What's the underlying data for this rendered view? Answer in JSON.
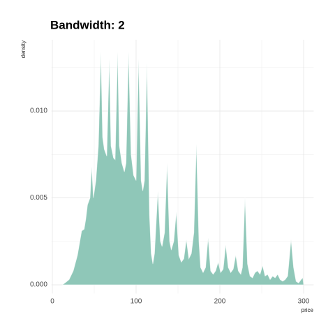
{
  "chart_data": {
    "type": "area",
    "title": "Bandwidth: 2",
    "x_label": "price",
    "y_label": "density",
    "x": [
      12,
      15,
      20,
      25,
      30,
      35,
      38,
      40,
      42,
      45,
      47,
      49,
      52,
      55,
      58,
      60,
      62,
      65,
      68,
      70,
      73,
      75,
      78,
      80,
      83,
      86,
      88,
      91,
      94,
      97,
      100,
      103,
      106,
      108,
      110,
      113,
      116,
      118,
      120,
      122,
      126,
      129,
      131,
      134,
      137,
      140,
      142,
      145,
      148,
      151,
      154,
      157,
      160,
      163,
      166,
      169,
      172,
      175,
      177,
      180,
      183,
      186,
      189,
      192,
      195,
      198,
      201,
      204,
      207,
      210,
      213,
      216,
      219,
      222,
      225,
      227,
      230,
      233,
      236,
      239,
      242,
      245,
      248,
      251,
      254,
      257,
      260,
      263,
      266,
      269,
      272,
      275,
      278,
      281,
      285,
      288,
      291,
      294,
      297,
      299,
      300
    ],
    "values": [
      0,
      0.0001,
      0.0003,
      0.0008,
      0.0017,
      0.0031,
      0.0032,
      0.0038,
      0.0046,
      0.005,
      0.0068,
      0.005,
      0.006,
      0.008,
      0.0134,
      0.0085,
      0.0078,
      0.0074,
      0.013,
      0.008,
      0.0073,
      0.0072,
      0.0134,
      0.008,
      0.007,
      0.0065,
      0.007,
      0.0134,
      0.0075,
      0.0063,
      0.006,
      0.013,
      0.006,
      0.0054,
      0.006,
      0.0128,
      0.004,
      0.0018,
      0.0012,
      0.0018,
      0.0054,
      0.0025,
      0.0022,
      0.003,
      0.007,
      0.0025,
      0.002,
      0.0025,
      0.0042,
      0.0017,
      0.0013,
      0.0015,
      0.0026,
      0.0015,
      0.0018,
      0.003,
      0.0081,
      0.0025,
      0.001,
      0.0007,
      0.001,
      0.0027,
      0.0008,
      0.0006,
      0.0008,
      0.0013,
      0.0007,
      0.0009,
      0.0023,
      0.001,
      0.0007,
      0.0009,
      0.0017,
      0.0008,
      0.0006,
      0.001,
      0.005,
      0.0012,
      0.0005,
      0.0004,
      0.0007,
      0.0008,
      0.0006,
      0.0011,
      0.0005,
      0.0006,
      0.0003,
      0.0005,
      0.0004,
      0.0006,
      0.0003,
      0.0002,
      0.0003,
      0.0005,
      0.0026,
      0.001,
      0.0002,
      0.0001,
      0.0003,
      0.0004,
      0
    ],
    "color": "#8fc7b8",
    "xlim": [
      -1,
      312
    ],
    "xticks": [
      0,
      100,
      200,
      300
    ],
    "x_minor_ticks": [
      50,
      150,
      250
    ],
    "ylim": [
      -0.0005,
      0.0141
    ],
    "yticks": [
      {
        "value": 0,
        "label": "0.000"
      },
      {
        "value": 0.005,
        "label": "0.005"
      },
      {
        "value": 0.01,
        "label": "0.010"
      }
    ],
    "y_minor_ticks": [
      0.0025,
      0.0075,
      0.0125
    ],
    "grid": true
  }
}
